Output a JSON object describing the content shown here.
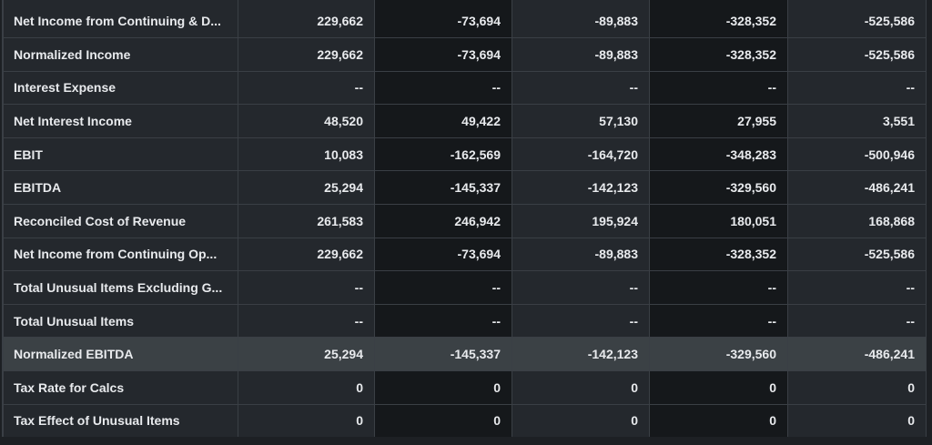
{
  "table": {
    "rows": [
      {
        "label": "Net Income from Continuing & D...",
        "values": [
          "229,662",
          "-73,694",
          "-89,883",
          "-328,352",
          "-525,586"
        ]
      },
      {
        "label": "Normalized Income",
        "values": [
          "229,662",
          "-73,694",
          "-89,883",
          "-328,352",
          "-525,586"
        ]
      },
      {
        "label": "Interest Expense",
        "values": [
          "--",
          "--",
          "--",
          "--",
          "--"
        ]
      },
      {
        "label": "Net Interest Income",
        "values": [
          "48,520",
          "49,422",
          "57,130",
          "27,955",
          "3,551"
        ]
      },
      {
        "label": "EBIT",
        "values": [
          "10,083",
          "-162,569",
          "-164,720",
          "-348,283",
          "-500,946"
        ]
      },
      {
        "label": "EBITDA",
        "values": [
          "25,294",
          "-145,337",
          "-142,123",
          "-329,560",
          "-486,241"
        ]
      },
      {
        "label": "Reconciled Cost of Revenue",
        "values": [
          "261,583",
          "246,942",
          "195,924",
          "180,051",
          "168,868"
        ]
      },
      {
        "label": "Net Income from Continuing Op...",
        "values": [
          "229,662",
          "-73,694",
          "-89,883",
          "-328,352",
          "-525,586"
        ]
      },
      {
        "label": "Total Unusual Items Excluding G...",
        "values": [
          "--",
          "--",
          "--",
          "--",
          "--"
        ]
      },
      {
        "label": "Total Unusual Items",
        "values": [
          "--",
          "--",
          "--",
          "--",
          "--"
        ]
      },
      {
        "label": "Normalized EBITDA",
        "values": [
          "25,294",
          "-145,337",
          "-142,123",
          "-329,560",
          "-486,241"
        ],
        "highlighted": true
      },
      {
        "label": "Tax Rate for Calcs",
        "values": [
          "0",
          "0",
          "0",
          "0",
          "0"
        ]
      },
      {
        "label": "Tax Effect of Unusual Items",
        "values": [
          "0",
          "0",
          "0",
          "0",
          "0"
        ]
      }
    ]
  },
  "colors": {
    "background": "#1d2024",
    "cell_light": "#24282d",
    "cell_dark": "#15181b",
    "highlight_row": "#3b4145",
    "border": "#3a3f45",
    "text": "#e8eaed"
  }
}
